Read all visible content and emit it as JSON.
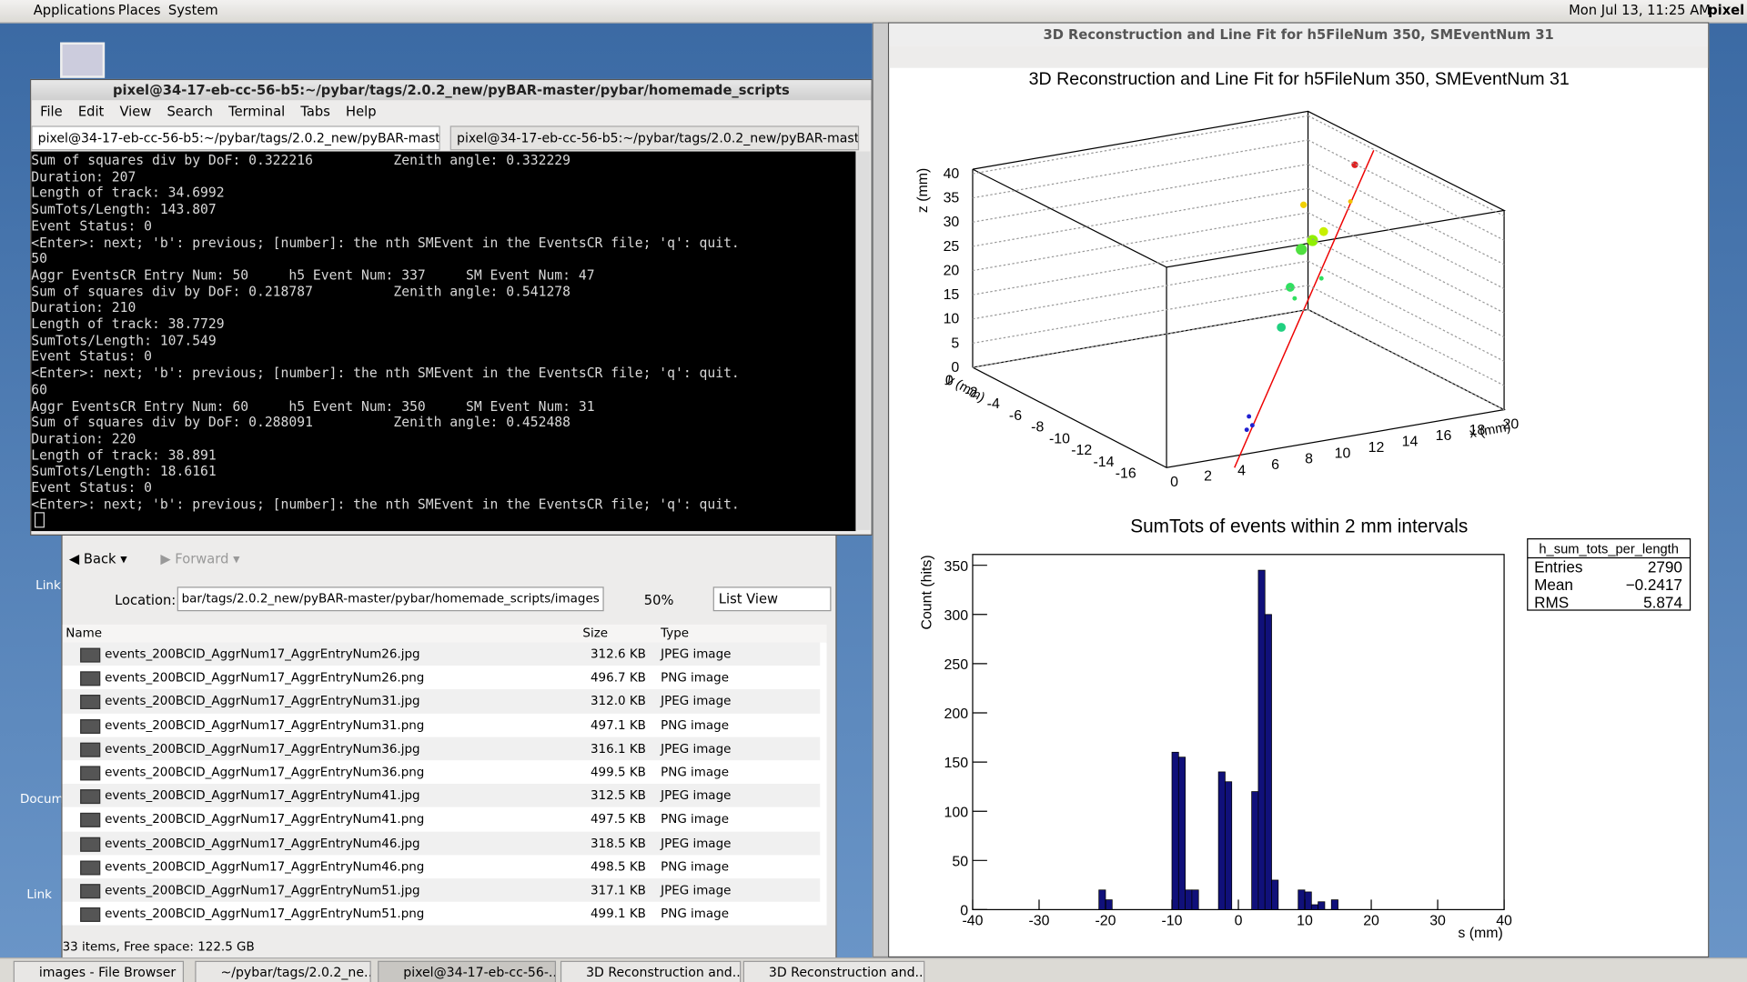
{
  "top_panel": {
    "menus": [
      "Applications",
      "Places",
      "System"
    ],
    "clock": "Mon Jul 13, 11:25 AM",
    "user": "pixel"
  },
  "desktop_icons": [
    "Link",
    "Docum",
    "Link"
  ],
  "terminal": {
    "title": "pixel@34-17-eb-cc-56-b5:~/pybar/tags/2.0.2_new/pyBAR-master/pybar/homemade_scripts",
    "menus": [
      "File",
      "Edit",
      "View",
      "Search",
      "Terminal",
      "Tabs",
      "Help"
    ],
    "tabs": [
      "pixel@34-17-eb-cc-56-b5:~/pybar/tags/2.0.2_new/pyBAR-maste...",
      "pixel@34-17-eb-cc-56-b5:~/pybar/tags/2.0.2_new/pyBAR-maste..."
    ],
    "lines": [
      "Sum of squares div by DoF: 0.322216          Zenith angle: 0.332229",
      "Duration: 207",
      "Length of track: 34.6992",
      "SumTots/Length: 143.807",
      "Event Status: 0",
      "<Enter>: next; 'b': previous; [number]: the nth SMEvent in the EventsCR file; 'q': quit.",
      "50",
      "Aggr EventsCR Entry Num: 50     h5 Event Num: 337     SM Event Num: 47",
      "Sum of squares div by DoF: 0.218787          Zenith angle: 0.541278",
      "Duration: 210",
      "Length of track: 38.7729",
      "SumTots/Length: 107.549",
      "Event Status: 0",
      "<Enter>: next; 'b': previous; [number]: the nth SMEvent in the EventsCR file; 'q': quit.",
      "60",
      "Aggr EventsCR Entry Num: 60     h5 Event Num: 350     SM Event Num: 31",
      "Sum of squares div by DoF: 0.288091          Zenith angle: 0.452488",
      "Duration: 220",
      "Length of track: 38.891",
      "SumTots/Length: 18.6161",
      "Event Status: 0",
      "<Enter>: next; 'b': previous; [number]: the nth SMEvent in the EventsCR file; 'q': quit."
    ]
  },
  "file_browser": {
    "back": "Back",
    "forward": "Forward",
    "location_label": "Location:",
    "location": "bar/tags/2.0.2_new/pyBAR-master/pybar/homemade_scripts/images",
    "zoom": "50%",
    "view": "List View",
    "columns": [
      "Name",
      "Size",
      "Type"
    ],
    "rows": [
      [
        "events_200BCID_AggrNum17_AggrEntryNum26.jpg",
        "312.6 KB",
        "JPEG image"
      ],
      [
        "events_200BCID_AggrNum17_AggrEntryNum26.png",
        "496.7 KB",
        "PNG image"
      ],
      [
        "events_200BCID_AggrNum17_AggrEntryNum31.jpg",
        "312.0 KB",
        "JPEG image"
      ],
      [
        "events_200BCID_AggrNum17_AggrEntryNum31.png",
        "497.1 KB",
        "PNG image"
      ],
      [
        "events_200BCID_AggrNum17_AggrEntryNum36.jpg",
        "316.1 KB",
        "JPEG image"
      ],
      [
        "events_200BCID_AggrNum17_AggrEntryNum36.png",
        "499.5 KB",
        "PNG image"
      ],
      [
        "events_200BCID_AggrNum17_AggrEntryNum41.jpg",
        "312.5 KB",
        "JPEG image"
      ],
      [
        "events_200BCID_AggrNum17_AggrEntryNum41.png",
        "497.5 KB",
        "PNG image"
      ],
      [
        "events_200BCID_AggrNum17_AggrEntryNum46.jpg",
        "318.5 KB",
        "JPEG image"
      ],
      [
        "events_200BCID_AggrNum17_AggrEntryNum46.png",
        "498.5 KB",
        "PNG image"
      ],
      [
        "events_200BCID_AggrNum17_AggrEntryNum51.jpg",
        "317.1 KB",
        "JPEG image"
      ],
      [
        "events_200BCID_AggrNum17_AggrEntryNum51.png",
        "499.1 KB",
        "PNG image"
      ]
    ],
    "status": "33 items, Free space: 122.5 GB"
  },
  "plot_window": {
    "title": "3D Reconstruction and Line Fit for h5FileNum 350, SMEventNum 31"
  },
  "reconstruction": {
    "title": "3D Reconstruction and Line Fit for h5FileNum 350, SMEventNum 31",
    "z_label": "z (mm)",
    "y_label": "y (mm)",
    "x_label": "x (mm)",
    "zticks": [
      0,
      5,
      10,
      15,
      20,
      25,
      30,
      35,
      40
    ],
    "yticks": [
      0,
      -2,
      -4,
      -6,
      -8,
      -10,
      -12,
      -14,
      -16
    ],
    "xticks": [
      0,
      2,
      4,
      6,
      8,
      10,
      12,
      14,
      16,
      18,
      20
    ]
  },
  "histogram": {
    "type": "histogram",
    "title": "SumTots of events within 2 mm intervals",
    "x_label": "s (mm)",
    "y_label": "Count (hits)",
    "bins": [
      -24,
      -23,
      -22,
      -21,
      -20,
      -19,
      -18,
      -17,
      -16,
      -15,
      -14,
      -13,
      -12,
      -11,
      -10,
      -9,
      -8,
      -7,
      -6,
      -5,
      -4,
      -3,
      -2,
      -1,
      0,
      1,
      2,
      3,
      4,
      5,
      6,
      7,
      8,
      9,
      10,
      11,
      12,
      13,
      14,
      15,
      16
    ],
    "counts": [
      0,
      0,
      0,
      20,
      10,
      0,
      0,
      0,
      0,
      0,
      0,
      0,
      0,
      0,
      160,
      155,
      20,
      20,
      0,
      0,
      0,
      140,
      130,
      0,
      0,
      0,
      120,
      345,
      300,
      30,
      0,
      0,
      0,
      20,
      18,
      5,
      8,
      0,
      10,
      0
    ],
    "color": "#10107a",
    "xlim": [
      -40,
      40
    ],
    "ylim": [
      0,
      361
    ],
    "xticks": [
      -40,
      -30,
      -20,
      -10,
      0,
      10,
      20,
      30,
      40
    ],
    "yticks": [
      0,
      50,
      100,
      150,
      200,
      250,
      300,
      350
    ]
  },
  "stats": {
    "name": "h_sum_tots_per_length",
    "rows": [
      [
        "Entries",
        "2790"
      ],
      [
        "Mean",
        "−0.2417"
      ],
      [
        "RMS",
        "5.874"
      ]
    ]
  },
  "taskbar": [
    "images - File Browser",
    "~/pybar/tags/2.0.2_ne...",
    "pixel@34-17-eb-cc-56-...",
    "3D Reconstruction and...",
    "3D Reconstruction and..."
  ]
}
